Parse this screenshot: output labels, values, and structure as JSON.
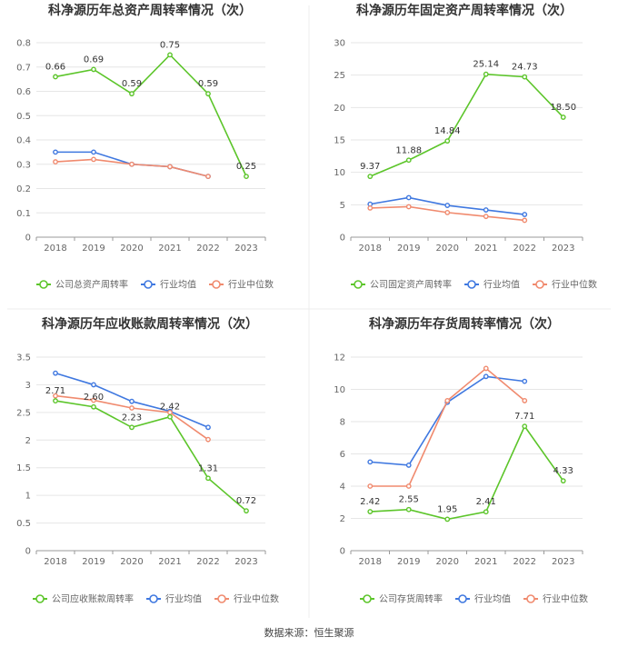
{
  "footer": "数据来源：恒生聚源",
  "colors": {
    "company": "#5cc52a",
    "avg": "#3f78e0",
    "median": "#f08a6e",
    "grid": "#e6e6e6",
    "axis": "#999999",
    "text": "#666666"
  },
  "chart_data": [
    {
      "type": "line",
      "title": "科净源历年总资产周转率情况（次）",
      "categories": [
        "2018",
        "2019",
        "2020",
        "2021",
        "2022",
        "2023"
      ],
      "ylim": [
        0,
        0.8
      ],
      "yticks": [
        "0",
        "0.1",
        "0.2",
        "0.3",
        "0.4",
        "0.5",
        "0.6",
        "0.7",
        "0.8"
      ],
      "grid": true,
      "legend_position": "bottom",
      "series": [
        {
          "name": "公司总资产周转率",
          "role": "company",
          "values": [
            0.66,
            0.69,
            0.59,
            0.75,
            0.59,
            0.25
          ],
          "labels": [
            "0.66",
            "0.69",
            "0.59",
            "0.75",
            "0.59",
            "0.25"
          ]
        },
        {
          "name": "行业均值",
          "role": "avg",
          "values": [
            0.35,
            0.35,
            0.3,
            0.29,
            0.25,
            null
          ]
        },
        {
          "name": "行业中位数",
          "role": "median",
          "values": [
            0.31,
            0.32,
            0.3,
            0.29,
            0.25,
            null
          ]
        }
      ]
    },
    {
      "type": "line",
      "title": "科净源历年固定资产周转率情况（次）",
      "categories": [
        "2018",
        "2019",
        "2020",
        "2021",
        "2022",
        "2023"
      ],
      "ylim": [
        0,
        30
      ],
      "yticks": [
        "0",
        "5",
        "10",
        "15",
        "20",
        "25",
        "30"
      ],
      "grid": true,
      "legend_position": "bottom",
      "series": [
        {
          "name": "公司固定资产周转率",
          "role": "company",
          "values": [
            9.37,
            11.88,
            14.84,
            25.14,
            24.73,
            18.5
          ],
          "labels": [
            "9.37",
            "11.88",
            "14.84",
            "25.14",
            "24.73",
            "18.50"
          ]
        },
        {
          "name": "行业均值",
          "role": "avg",
          "values": [
            5.1,
            6.1,
            4.9,
            4.2,
            3.5,
            null
          ]
        },
        {
          "name": "行业中位数",
          "role": "median",
          "values": [
            4.5,
            4.7,
            3.8,
            3.2,
            2.6,
            null
          ]
        }
      ]
    },
    {
      "type": "line",
      "title": "科净源历年应收账款周转率情况（次）",
      "categories": [
        "2018",
        "2019",
        "2020",
        "2021",
        "2022",
        "2023"
      ],
      "ylim": [
        0,
        3.5
      ],
      "yticks": [
        "0",
        "0.5",
        "1",
        "1.5",
        "2",
        "2.5",
        "3",
        "3.5"
      ],
      "grid": true,
      "legend_position": "bottom",
      "series": [
        {
          "name": "公司应收账款周转率",
          "role": "company",
          "values": [
            2.71,
            2.6,
            2.23,
            2.42,
            1.31,
            0.72
          ],
          "labels": [
            "2.71",
            "2.60",
            "2.23",
            "2.42",
            "1.31",
            "0.72"
          ]
        },
        {
          "name": "行业均值",
          "role": "avg",
          "values": [
            3.21,
            3.0,
            2.7,
            2.52,
            2.23,
            null
          ]
        },
        {
          "name": "行业中位数",
          "role": "median",
          "values": [
            2.8,
            2.72,
            2.58,
            2.5,
            2.01,
            null
          ]
        }
      ]
    },
    {
      "type": "line",
      "title": "科净源历年存货周转率情况（次）",
      "categories": [
        "2018",
        "2019",
        "2020",
        "2021",
        "2022",
        "2023"
      ],
      "ylim": [
        0,
        12
      ],
      "yticks": [
        "0",
        "2",
        "4",
        "6",
        "8",
        "10",
        "12"
      ],
      "grid": true,
      "legend_position": "bottom",
      "series": [
        {
          "name": "公司存货周转率",
          "role": "company",
          "values": [
            2.42,
            2.55,
            1.95,
            2.41,
            7.71,
            4.33
          ],
          "labels": [
            "2.42",
            "2.55",
            "1.95",
            "2.41",
            "7.71",
            "4.33"
          ]
        },
        {
          "name": "行业均值",
          "role": "avg",
          "values": [
            5.5,
            5.3,
            9.2,
            10.8,
            10.5,
            null
          ]
        },
        {
          "name": "行业中位数",
          "role": "median",
          "values": [
            4.0,
            4.0,
            9.3,
            11.3,
            9.3,
            null
          ]
        }
      ]
    }
  ]
}
